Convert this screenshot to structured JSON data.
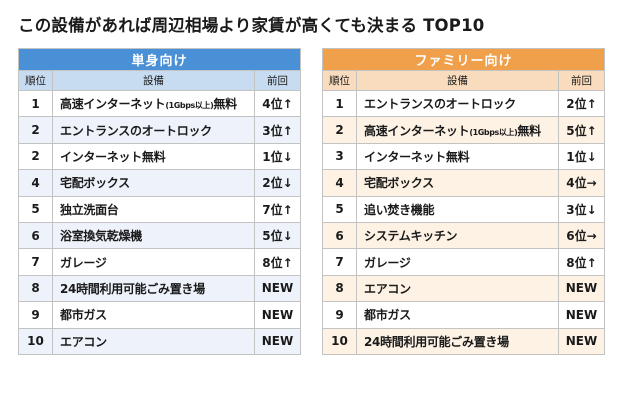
{
  "title": "この設備があれば周辺相場より家賃が高くても決まる TOP10",
  "columns": {
    "rank": "順位",
    "facility": "設備",
    "previous": "前回"
  },
  "tables": [
    {
      "id": "single",
      "label": "単身向け",
      "rows": [
        {
          "rank": "1",
          "facility": "高速インターネット",
          "note": "(1Gbps以上)",
          "suffix": "無料",
          "previous": "4位↑"
        },
        {
          "rank": "2",
          "facility": "エントランスのオートロック",
          "note": "",
          "suffix": "",
          "previous": "3位↑"
        },
        {
          "rank": "2",
          "facility": "インターネット無料",
          "note": "",
          "suffix": "",
          "previous": "1位↓"
        },
        {
          "rank": "4",
          "facility": "宅配ボックス",
          "note": "",
          "suffix": "",
          "previous": "2位↓"
        },
        {
          "rank": "5",
          "facility": "独立洗面台",
          "note": "",
          "suffix": "",
          "previous": "7位↑"
        },
        {
          "rank": "6",
          "facility": "浴室換気乾燥機",
          "note": "",
          "suffix": "",
          "previous": "5位↓"
        },
        {
          "rank": "7",
          "facility": "ガレージ",
          "note": "",
          "suffix": "",
          "previous": "8位↑"
        },
        {
          "rank": "8",
          "facility": "24時間利用可能ごみ置き場",
          "note": "",
          "suffix": "",
          "previous": "NEW"
        },
        {
          "rank": "9",
          "facility": "都市ガス",
          "note": "",
          "suffix": "",
          "previous": "NEW"
        },
        {
          "rank": "10",
          "facility": "エアコン",
          "note": "",
          "suffix": "",
          "previous": "NEW"
        }
      ]
    },
    {
      "id": "family",
      "label": "ファミリー向け",
      "rows": [
        {
          "rank": "1",
          "facility": "エントランスのオートロック",
          "note": "",
          "suffix": "",
          "previous": "2位↑"
        },
        {
          "rank": "2",
          "facility": "高速インターネット",
          "note": "(1Gbps以上)",
          "suffix": "無料",
          "previous": "5位↑"
        },
        {
          "rank": "3",
          "facility": "インターネット無料",
          "note": "",
          "suffix": "",
          "previous": "1位↓"
        },
        {
          "rank": "4",
          "facility": "宅配ボックス",
          "note": "",
          "suffix": "",
          "previous": "4位→"
        },
        {
          "rank": "5",
          "facility": "追い焚き機能",
          "note": "",
          "suffix": "",
          "previous": "3位↓"
        },
        {
          "rank": "6",
          "facility": "システムキッチン",
          "note": "",
          "suffix": "",
          "previous": "6位→"
        },
        {
          "rank": "7",
          "facility": "ガレージ",
          "note": "",
          "suffix": "",
          "previous": "8位↑"
        },
        {
          "rank": "8",
          "facility": "エアコン",
          "note": "",
          "suffix": "",
          "previous": "NEW"
        },
        {
          "rank": "9",
          "facility": "都市ガス",
          "note": "",
          "suffix": "",
          "previous": "NEW"
        },
        {
          "rank": "10",
          "facility": "24時間利用可能ごみ置き場",
          "note": "",
          "suffix": "",
          "previous": "NEW"
        }
      ]
    }
  ]
}
